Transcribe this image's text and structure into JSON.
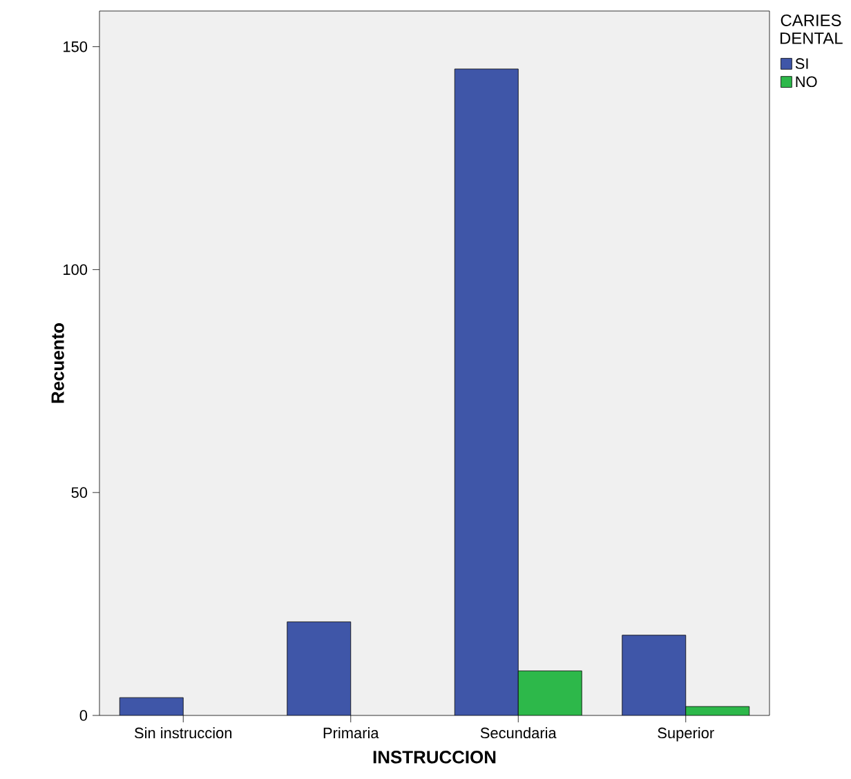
{
  "chart_data": {
    "type": "bar",
    "xlabel": "INSTRUCCION",
    "ylabel": "Recuento",
    "legend_title": "CARIES DENTAL",
    "categories": [
      "Sin instruccion",
      "Primaria",
      "Secundaria",
      "Superior"
    ],
    "series": [
      {
        "name": "SI",
        "color": "#3f56a8",
        "values": [
          4,
          21,
          145,
          18
        ]
      },
      {
        "name": "NO",
        "color": "#2db84a",
        "values": [
          null,
          null,
          10,
          2
        ]
      }
    ],
    "ylim": [
      0,
      158
    ],
    "yticks": [
      0,
      50,
      100,
      150
    ],
    "grid": false,
    "legend": "top right"
  }
}
